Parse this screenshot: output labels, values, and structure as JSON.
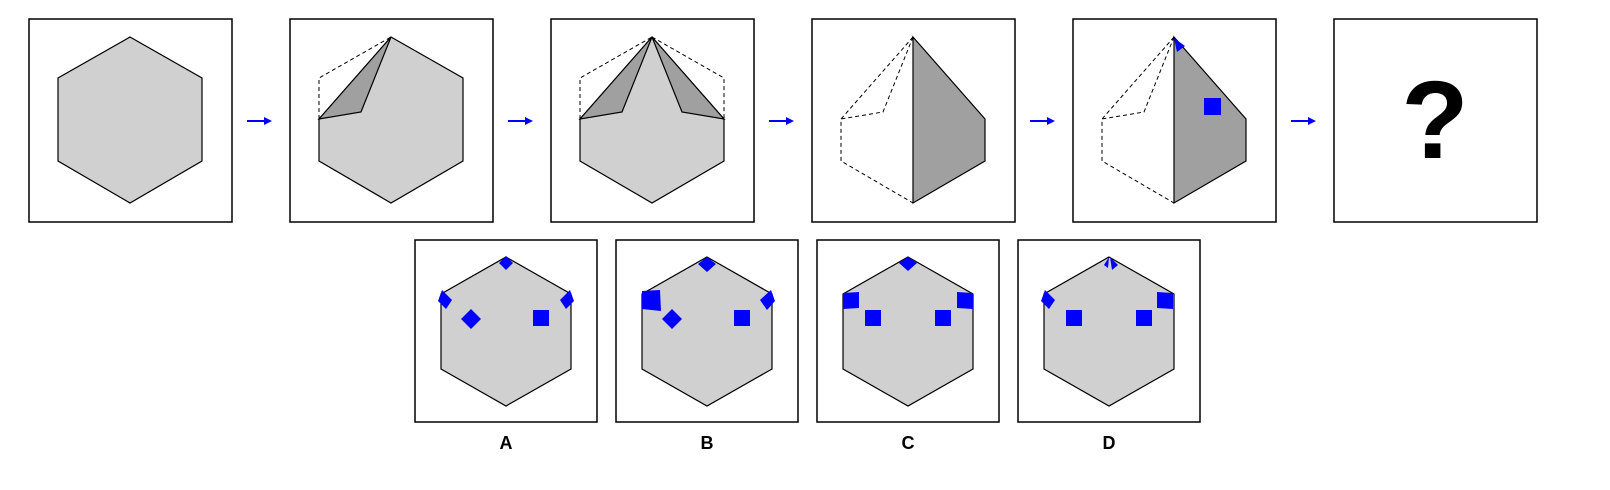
{
  "puzzle": {
    "question_mark": "?",
    "options": [
      {
        "label": "A"
      },
      {
        "label": "B"
      },
      {
        "label": "C"
      },
      {
        "label": "D"
      }
    ],
    "colors": {
      "hexagon_fill": "#d0d0d0",
      "fold_fill": "#a0a0a0",
      "mark": "#0000ff",
      "arrow": "#0000ff",
      "outline": "#000000"
    }
  }
}
